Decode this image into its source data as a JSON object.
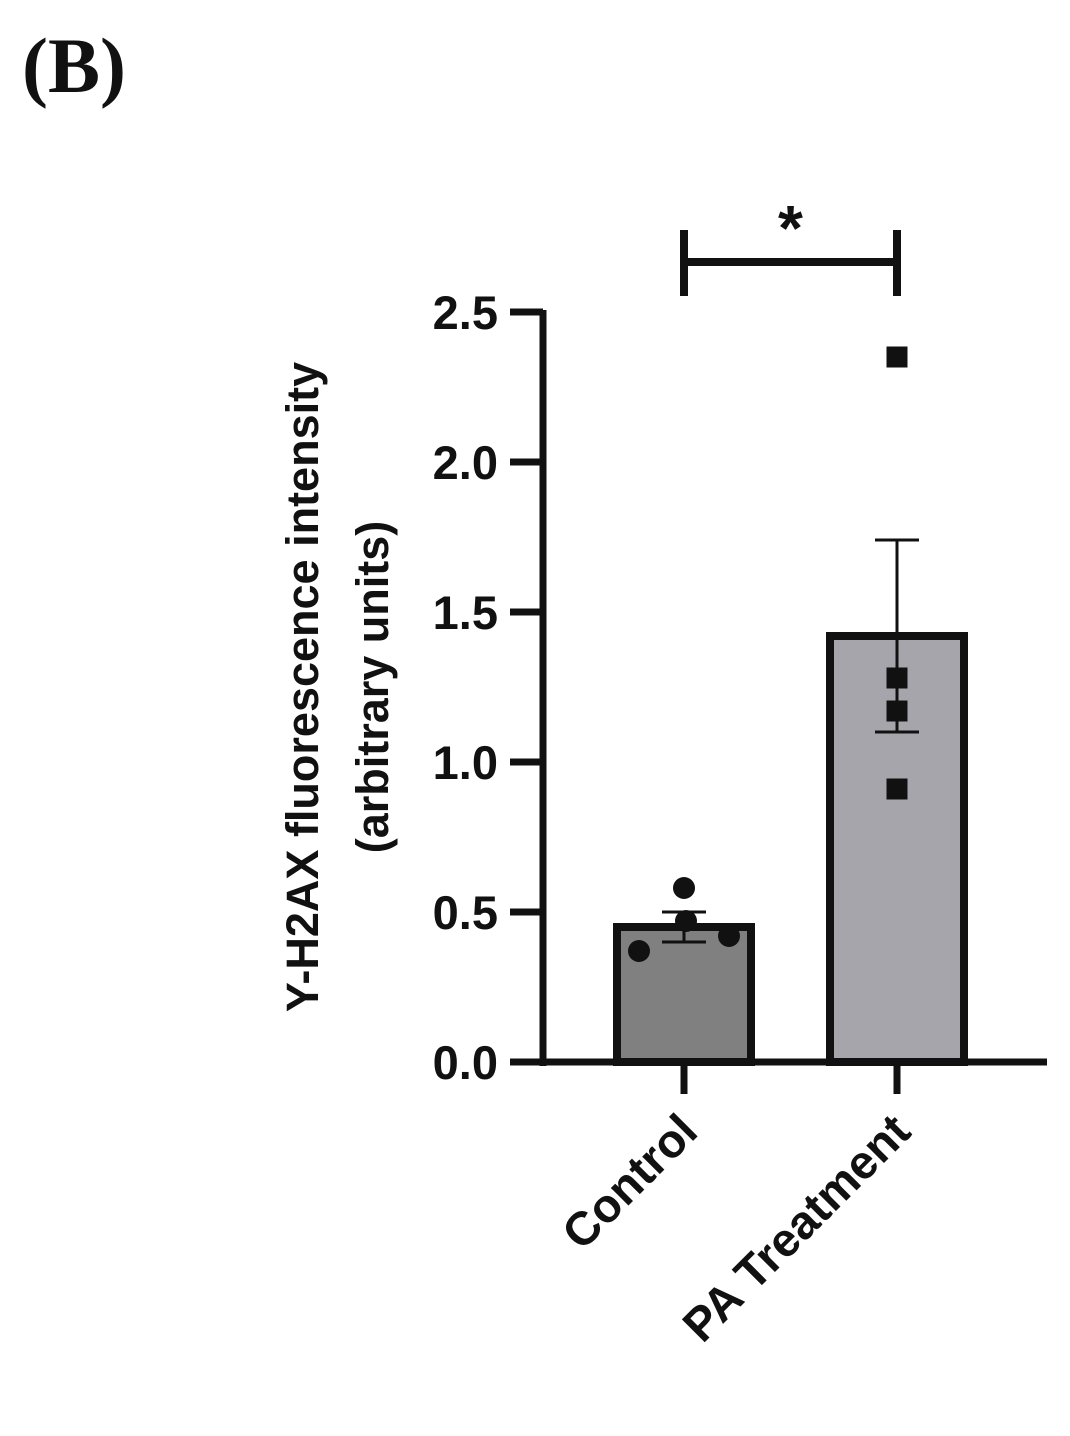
{
  "panel_label": "(B)",
  "chart_data": {
    "type": "bar",
    "title": "",
    "xlabel": "",
    "ylabel_line1": "Y-H2AX fluorescence intensity",
    "ylabel_line2": "(arbitrary units)",
    "ylim": [
      0,
      2.5
    ],
    "yticks": [
      0.0,
      0.5,
      1.0,
      1.5,
      2.0,
      2.5
    ],
    "ytick_labels": [
      "0.0",
      "0.5",
      "1.0",
      "1.5",
      "2.0",
      "2.5"
    ],
    "categories": [
      "Control",
      "PA Treatment"
    ],
    "values": [
      0.45,
      1.42
    ],
    "errors": [
      0.05,
      0.32
    ],
    "bar_colors": [
      "#808080",
      "#a6a5ab"
    ],
    "points": [
      {
        "marker": "circle",
        "values": [
          0.58,
          0.47,
          0.42,
          0.37
        ]
      },
      {
        "marker": "square",
        "values": [
          2.35,
          1.28,
          1.17,
          0.91
        ]
      }
    ],
    "significance": {
      "between": [
        0,
        1
      ],
      "label": "*"
    },
    "grid": false,
    "legend": "none"
  }
}
